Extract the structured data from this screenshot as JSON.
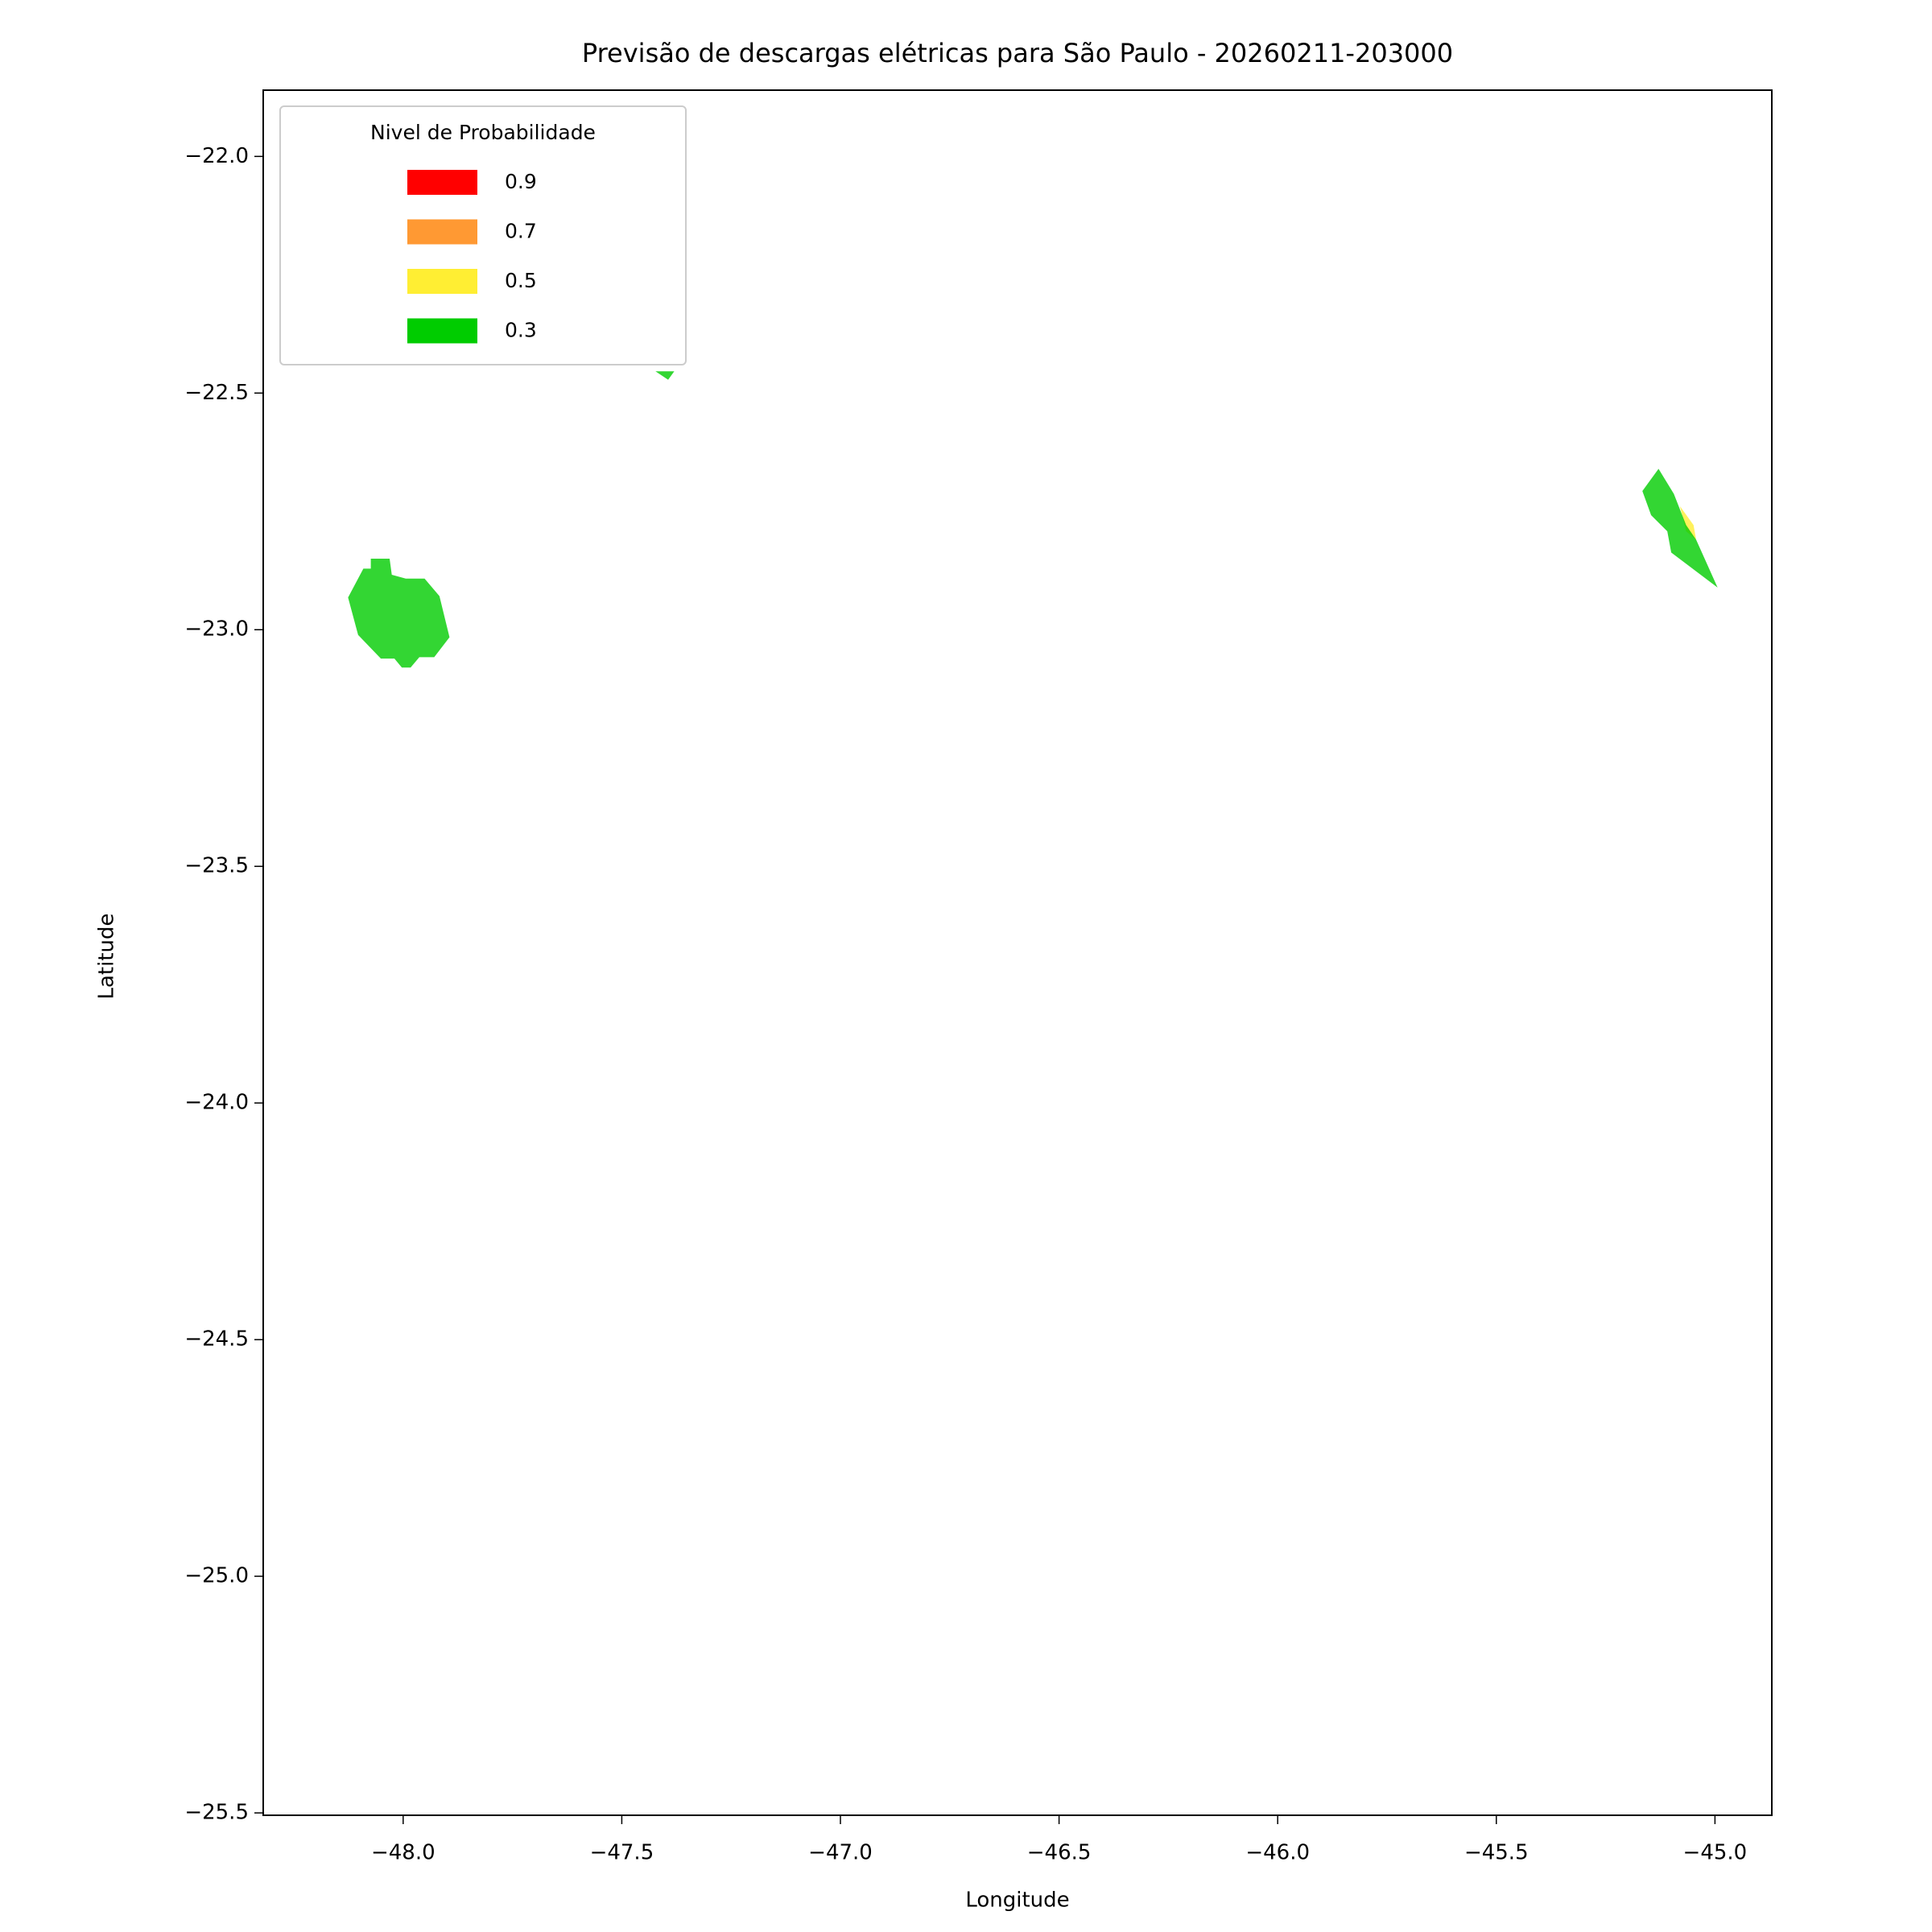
{
  "chart_data": {
    "type": "contourf",
    "title": "Previsão de descargas elétricas para São Paulo - 20260211-203000",
    "xlabel": "Longitude",
    "ylabel": "Latitude",
    "xlim": [
      -48.32,
      -44.87
    ],
    "ylim": [
      -25.505,
      -21.86
    ],
    "xticks": [
      {
        "value": -48.0,
        "label": "−48.0"
      },
      {
        "value": -47.5,
        "label": "−47.5"
      },
      {
        "value": -47.0,
        "label": "−47.0"
      },
      {
        "value": -46.5,
        "label": "−46.5"
      },
      {
        "value": -46.0,
        "label": "−46.0"
      },
      {
        "value": -45.5,
        "label": "−45.5"
      },
      {
        "value": -45.0,
        "label": "−45.0"
      }
    ],
    "yticks": [
      {
        "value": -22.0,
        "label": "−22.0"
      },
      {
        "value": -22.5,
        "label": "−22.5"
      },
      {
        "value": -23.0,
        "label": "−23.0"
      },
      {
        "value": -23.5,
        "label": "−23.5"
      },
      {
        "value": -24.0,
        "label": "−24.0"
      },
      {
        "value": -24.5,
        "label": "−24.5"
      },
      {
        "value": -25.0,
        "label": "−25.0"
      },
      {
        "value": -25.5,
        "label": "−25.5"
      }
    ],
    "legend_title": "Nivel de Probabilidade",
    "legend_loc": "upper left",
    "series": [
      {
        "name": "0.9",
        "color": "#ff0000",
        "polygons": []
      },
      {
        "name": "0.7",
        "color": "#ff9933",
        "polygons": []
      },
      {
        "name": "0.5",
        "color": "#ffee33",
        "polygons": [
          {
            "lon": [
              -45.08,
              -45.049,
              -45.043,
              -45.066
            ],
            "lat": [
              -22.739,
              -22.779,
              -22.81,
              -22.792
            ]
          }
        ]
      },
      {
        "name": "0.3",
        "color": "#00cc00",
        "polygons": [
          {
            "lon": [
              -48.126,
              -48.091,
              -48.074,
              -48.074,
              -48.031,
              -48.026,
              -47.994,
              -47.951,
              -47.917,
              -47.894,
              -47.929,
              -47.963,
              -47.983,
              -48.003,
              -48.02,
              -48.051,
              -48.103
            ],
            "lat": [
              -22.932,
              -22.871,
              -22.871,
              -22.85,
              -22.85,
              -22.884,
              -22.892,
              -22.892,
              -22.929,
              -23.016,
              -23.058,
              -23.058,
              -23.08,
              -23.08,
              -23.061,
              -23.061,
              -23.011
            ]
          },
          {
            "lon": [
              -47.423,
              -47.38,
              -47.394
            ],
            "lat": [
              -22.454,
              -22.454,
              -22.472
            ]
          },
          {
            "lon": [
              -45.166,
              -45.129,
              -45.094,
              -45.066,
              -45.043,
              -44.994,
              -45.1,
              -45.109,
              -45.146
            ],
            "lat": [
              -22.707,
              -22.66,
              -22.713,
              -22.779,
              -22.81,
              -22.911,
              -22.837,
              -22.792,
              -22.758
            ]
          }
        ]
      }
    ]
  }
}
